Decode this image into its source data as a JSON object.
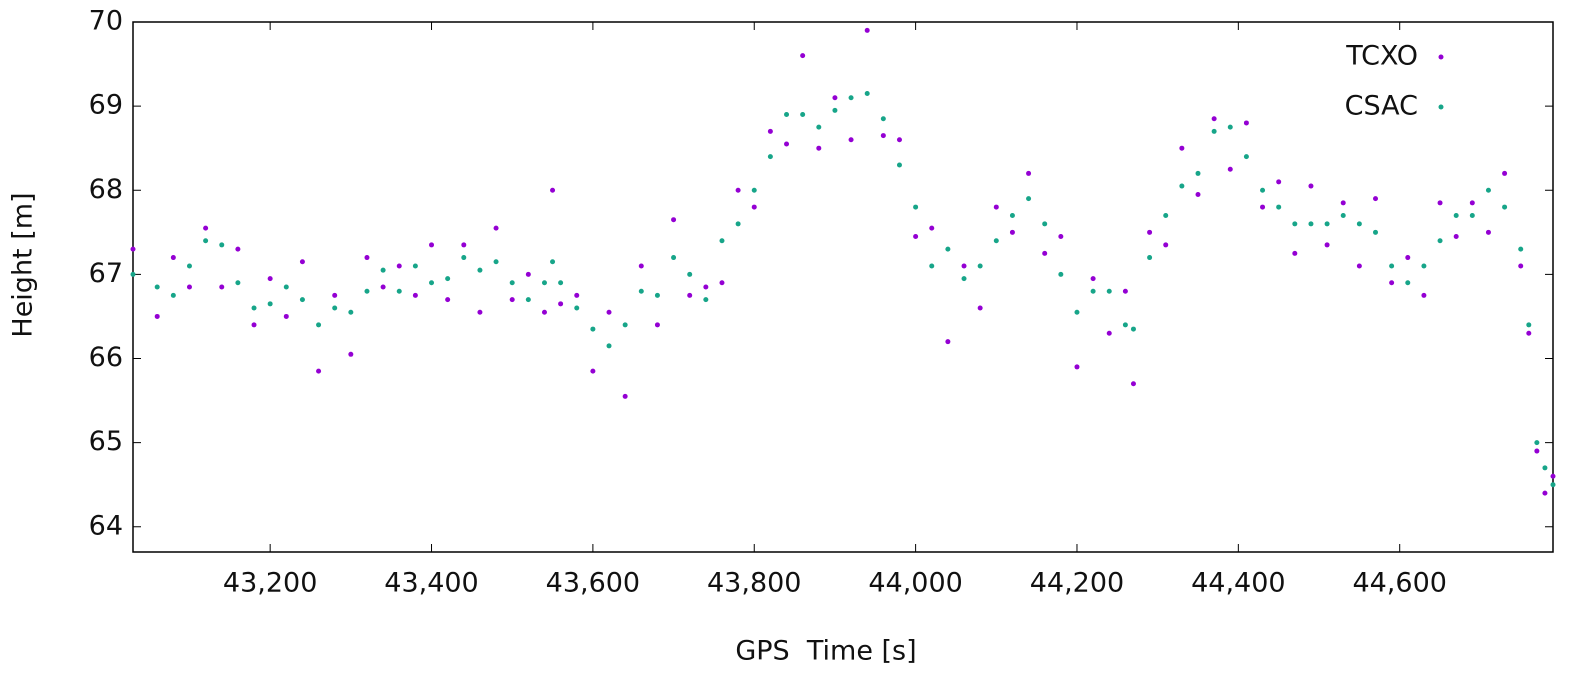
{
  "chart_data": {
    "type": "scatter",
    "xlabel": "GPS  Time [s]",
    "ylabel": "Height [m]",
    "xlim": [
      43030,
      44790
    ],
    "ylim": [
      63.7,
      70
    ],
    "xticks": [
      {
        "value": 43200,
        "label": "43,200"
      },
      {
        "value": 43400,
        "label": "43,400"
      },
      {
        "value": 43600,
        "label": "43,600"
      },
      {
        "value": 43800,
        "label": "43,800"
      },
      {
        "value": 44000,
        "label": "44,000"
      },
      {
        "value": 44200,
        "label": "44,200"
      },
      {
        "value": 44400,
        "label": "44,400"
      },
      {
        "value": 44600,
        "label": "44,600"
      }
    ],
    "yticks": [
      64,
      65,
      66,
      67,
      68,
      69,
      70
    ],
    "legend": "upper right",
    "series": [
      {
        "name": "TCXO",
        "color": "#9400d3",
        "x": [
          43030,
          43060,
          43080,
          43100,
          43120,
          43140,
          43160,
          43180,
          43200,
          43220,
          43240,
          43260,
          43280,
          43300,
          43320,
          43340,
          43360,
          43380,
          43400,
          43420,
          43440,
          43460,
          43480,
          43500,
          43520,
          43540,
          43550,
          43560,
          43580,
          43600,
          43620,
          43640,
          43660,
          43680,
          43700,
          43720,
          43740,
          43760,
          43780,
          43800,
          43820,
          43840,
          43860,
          43880,
          43900,
          43920,
          43940,
          43960,
          43980,
          44000,
          44020,
          44040,
          44060,
          44080,
          44100,
          44120,
          44140,
          44160,
          44180,
          44200,
          44220,
          44240,
          44260,
          44270,
          44290,
          44310,
          44330,
          44350,
          44370,
          44390,
          44410,
          44430,
          44450,
          44470,
          44490,
          44510,
          44530,
          44550,
          44570,
          44590,
          44610,
          44630,
          44650,
          44670,
          44690,
          44710,
          44730,
          44750,
          44760,
          44770,
          44780,
          44790
        ],
        "values": [
          67.3,
          66.5,
          67.2,
          66.85,
          67.55,
          66.85,
          67.3,
          66.4,
          66.95,
          66.5,
          67.15,
          65.85,
          66.75,
          66.05,
          67.2,
          66.85,
          67.1,
          66.75,
          67.35,
          66.7,
          67.35,
          66.55,
          67.55,
          66.7,
          67.0,
          66.55,
          68.0,
          66.65,
          66.75,
          65.85,
          66.55,
          65.55,
          67.1,
          66.4,
          67.65,
          66.75,
          66.85,
          66.9,
          68.0,
          67.8,
          68.7,
          68.55,
          69.6,
          68.5,
          69.1,
          68.6,
          69.9,
          68.65,
          68.6,
          67.45,
          67.55,
          66.2,
          67.1,
          66.6,
          67.8,
          67.5,
          68.2,
          67.25,
          67.45,
          65.9,
          66.95,
          66.3,
          66.8,
          65.7,
          67.5,
          67.35,
          68.5,
          67.95,
          68.85,
          68.25,
          68.8,
          67.8,
          68.1,
          67.25,
          68.05,
          67.35,
          67.85,
          67.1,
          67.9,
          66.9,
          67.2,
          66.75,
          67.85,
          67.45,
          67.85,
          67.5,
          68.2,
          67.1,
          66.3,
          64.9,
          64.4,
          64.6
        ]
      },
      {
        "name": "CSAC",
        "color": "#17a589",
        "x": [
          43030,
          43060,
          43080,
          43100,
          43120,
          43140,
          43160,
          43180,
          43200,
          43220,
          43240,
          43260,
          43280,
          43300,
          43320,
          43340,
          43360,
          43380,
          43400,
          43420,
          43440,
          43460,
          43480,
          43500,
          43520,
          43540,
          43550,
          43560,
          43580,
          43600,
          43620,
          43640,
          43660,
          43680,
          43700,
          43720,
          43740,
          43760,
          43780,
          43800,
          43820,
          43840,
          43860,
          43880,
          43900,
          43920,
          43940,
          43960,
          43980,
          44000,
          44020,
          44040,
          44060,
          44080,
          44100,
          44120,
          44140,
          44160,
          44180,
          44200,
          44220,
          44240,
          44260,
          44270,
          44290,
          44310,
          44330,
          44350,
          44370,
          44390,
          44410,
          44430,
          44450,
          44470,
          44490,
          44510,
          44530,
          44550,
          44570,
          44590,
          44610,
          44630,
          44650,
          44670,
          44690,
          44710,
          44730,
          44750,
          44760,
          44770,
          44780,
          44790
        ],
        "values": [
          67.0,
          66.85,
          66.75,
          67.1,
          67.4,
          67.35,
          66.9,
          66.6,
          66.65,
          66.85,
          66.7,
          66.4,
          66.6,
          66.55,
          66.8,
          67.05,
          66.8,
          67.1,
          66.9,
          66.95,
          67.2,
          67.05,
          67.15,
          66.9,
          66.7,
          66.9,
          67.15,
          66.9,
          66.6,
          66.35,
          66.15,
          66.4,
          66.8,
          66.75,
          67.2,
          67.0,
          66.7,
          67.4,
          67.6,
          68.0,
          68.4,
          68.9,
          68.9,
          68.75,
          68.95,
          69.1,
          69.15,
          68.85,
          68.3,
          67.8,
          67.1,
          67.3,
          66.95,
          67.1,
          67.4,
          67.7,
          67.9,
          67.6,
          67.0,
          66.55,
          66.8,
          66.8,
          66.4,
          66.35,
          67.2,
          67.7,
          68.05,
          68.2,
          68.7,
          68.75,
          68.4,
          68.0,
          67.8,
          67.6,
          67.6,
          67.6,
          67.7,
          67.6,
          67.5,
          67.1,
          66.9,
          67.1,
          67.4,
          67.7,
          67.7,
          68.0,
          67.8,
          67.3,
          66.4,
          65.0,
          64.7,
          64.5
        ]
      }
    ]
  }
}
